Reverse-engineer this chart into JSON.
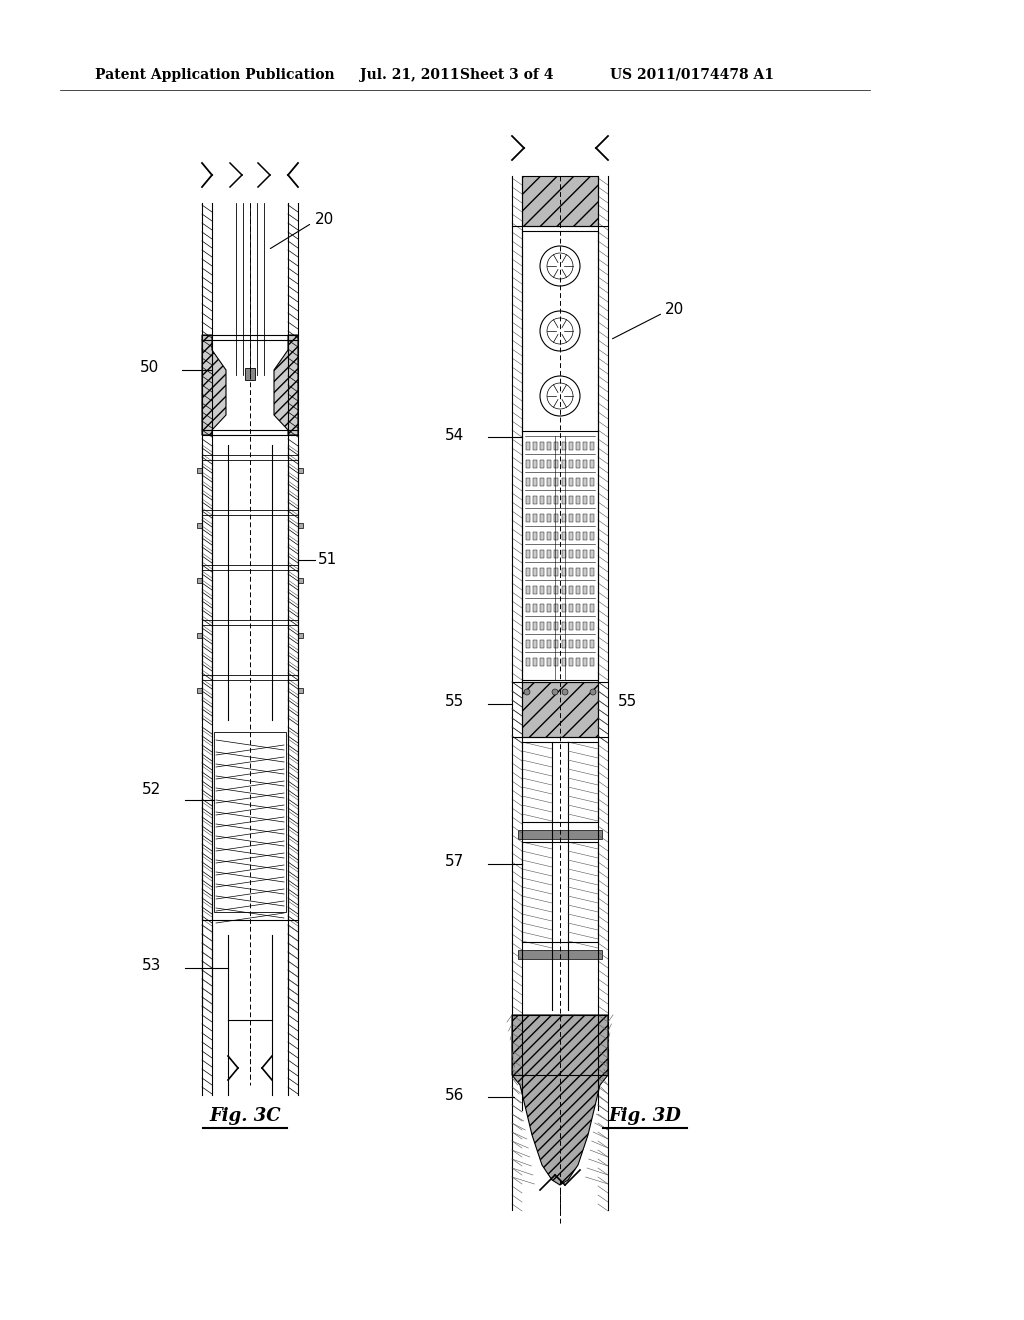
{
  "background_color": "#ffffff",
  "header_text": "Patent Application Publication",
  "header_date": "Jul. 21, 2011",
  "header_sheet": "Sheet 3 of 4",
  "header_patent": "US 2011/0174478 A1",
  "header_fontsize": 10,
  "fig3c_label": "Fig. 3C",
  "fig3d_label": "Fig. 3D",
  "label_20": "20",
  "label_50": "50",
  "label_51": "51",
  "label_52": "52",
  "label_53": "53",
  "label_54": "54",
  "label_55": "55",
  "label_56": "56",
  "label_57": "57",
  "line_color": "#000000",
  "fig_label_fontsize": 13,
  "annotation_fontsize": 11
}
